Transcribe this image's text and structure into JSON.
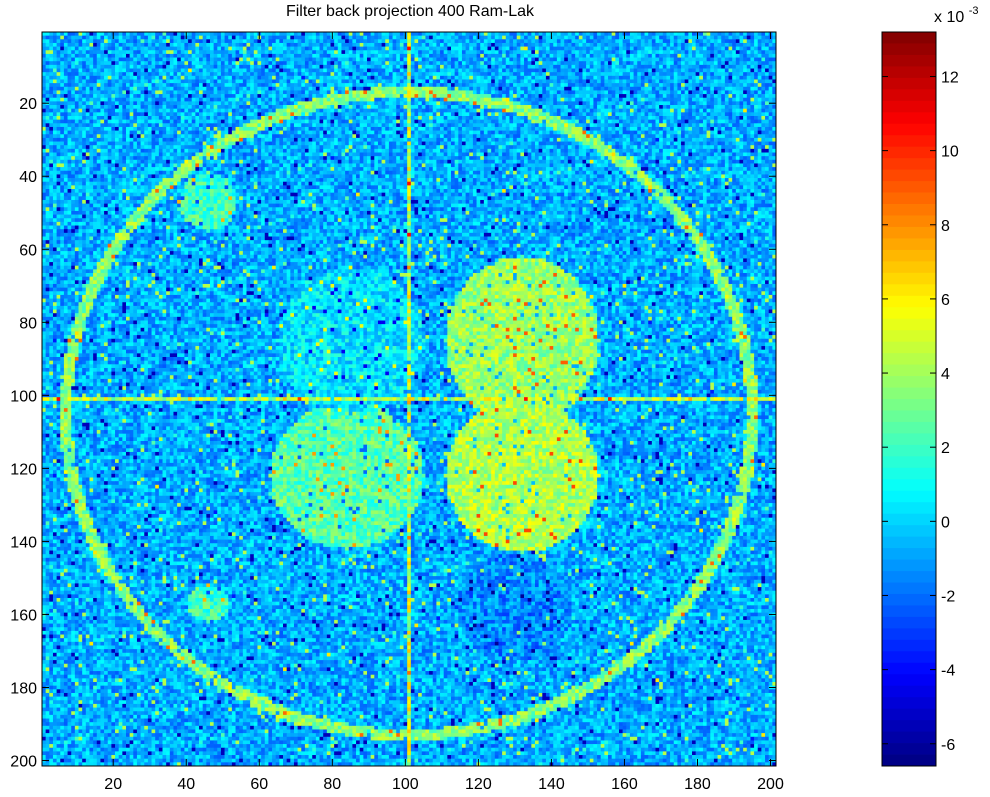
{
  "chart_data": {
    "type": "heatmap",
    "title": "Filter back projection 400 Ram-Lak",
    "xlabel": "",
    "ylabel": "",
    "image_size": [
      201,
      201
    ],
    "xlim": [
      0.5,
      201.5
    ],
    "ylim": [
      0.5,
      201.5
    ],
    "y_reversed": true,
    "x_ticks": [
      20,
      40,
      60,
      80,
      100,
      120,
      140,
      160,
      180,
      200
    ],
    "x_tick_labels": [
      "20",
      "40",
      "60",
      "80",
      "100",
      "120",
      "140",
      "160",
      "180",
      "200"
    ],
    "y_ticks": [
      20,
      40,
      60,
      80,
      100,
      120,
      140,
      160,
      180,
      200
    ],
    "y_tick_labels": [
      "20",
      "40",
      "60",
      "80",
      "100",
      "120",
      "140",
      "160",
      "180",
      "200"
    ],
    "colormap": "jet",
    "grid": false,
    "colorbar": {
      "multiplier_text": "x 10",
      "multiplier_exponent": "-3",
      "range": [
        -6.6,
        13.2
      ],
      "ticks": [
        -6,
        -4,
        -2,
        0,
        2,
        4,
        6,
        8,
        10,
        12
      ],
      "tick_labels": [
        "-6",
        "-4",
        "-2",
        "0",
        "2",
        "4",
        "6",
        "8",
        "10",
        "12"
      ],
      "placement": "right"
    },
    "background_value": -0.8,
    "features": [
      {
        "shape": "ellipse-ring",
        "cx": 101,
        "cy": 105,
        "rx": 94,
        "ry": 88,
        "value": 3.5
      },
      {
        "shape": "ellipse",
        "cx": 132,
        "cy": 85,
        "rx": 21,
        "ry": 23,
        "value": 3.8
      },
      {
        "shape": "ellipse",
        "cx": 132,
        "cy": 122,
        "rx": 21,
        "ry": 21,
        "value": 4.2
      },
      {
        "shape": "ellipse",
        "cx": 84,
        "cy": 122,
        "rx": 21,
        "ry": 20,
        "value": 2.5
      },
      {
        "shape": "ellipse",
        "cx": 85,
        "cy": 85,
        "rx": 20,
        "ry": 20,
        "value": 0.3
      },
      {
        "shape": "ellipse",
        "cx": 130,
        "cy": 158,
        "rx": 16,
        "ry": 15,
        "value": -1.5
      },
      {
        "shape": "ellipse",
        "cx": 46,
        "cy": 47,
        "rx": 8,
        "ry": 8,
        "value": 2.0
      },
      {
        "shape": "ellipse",
        "cx": 46,
        "cy": 157,
        "rx": 6,
        "ry": 5,
        "value": 2.0
      },
      {
        "shape": "vline",
        "x": 101,
        "value": 4.5
      },
      {
        "shape": "hline",
        "y": 101,
        "value": 4.5
      }
    ]
  }
}
